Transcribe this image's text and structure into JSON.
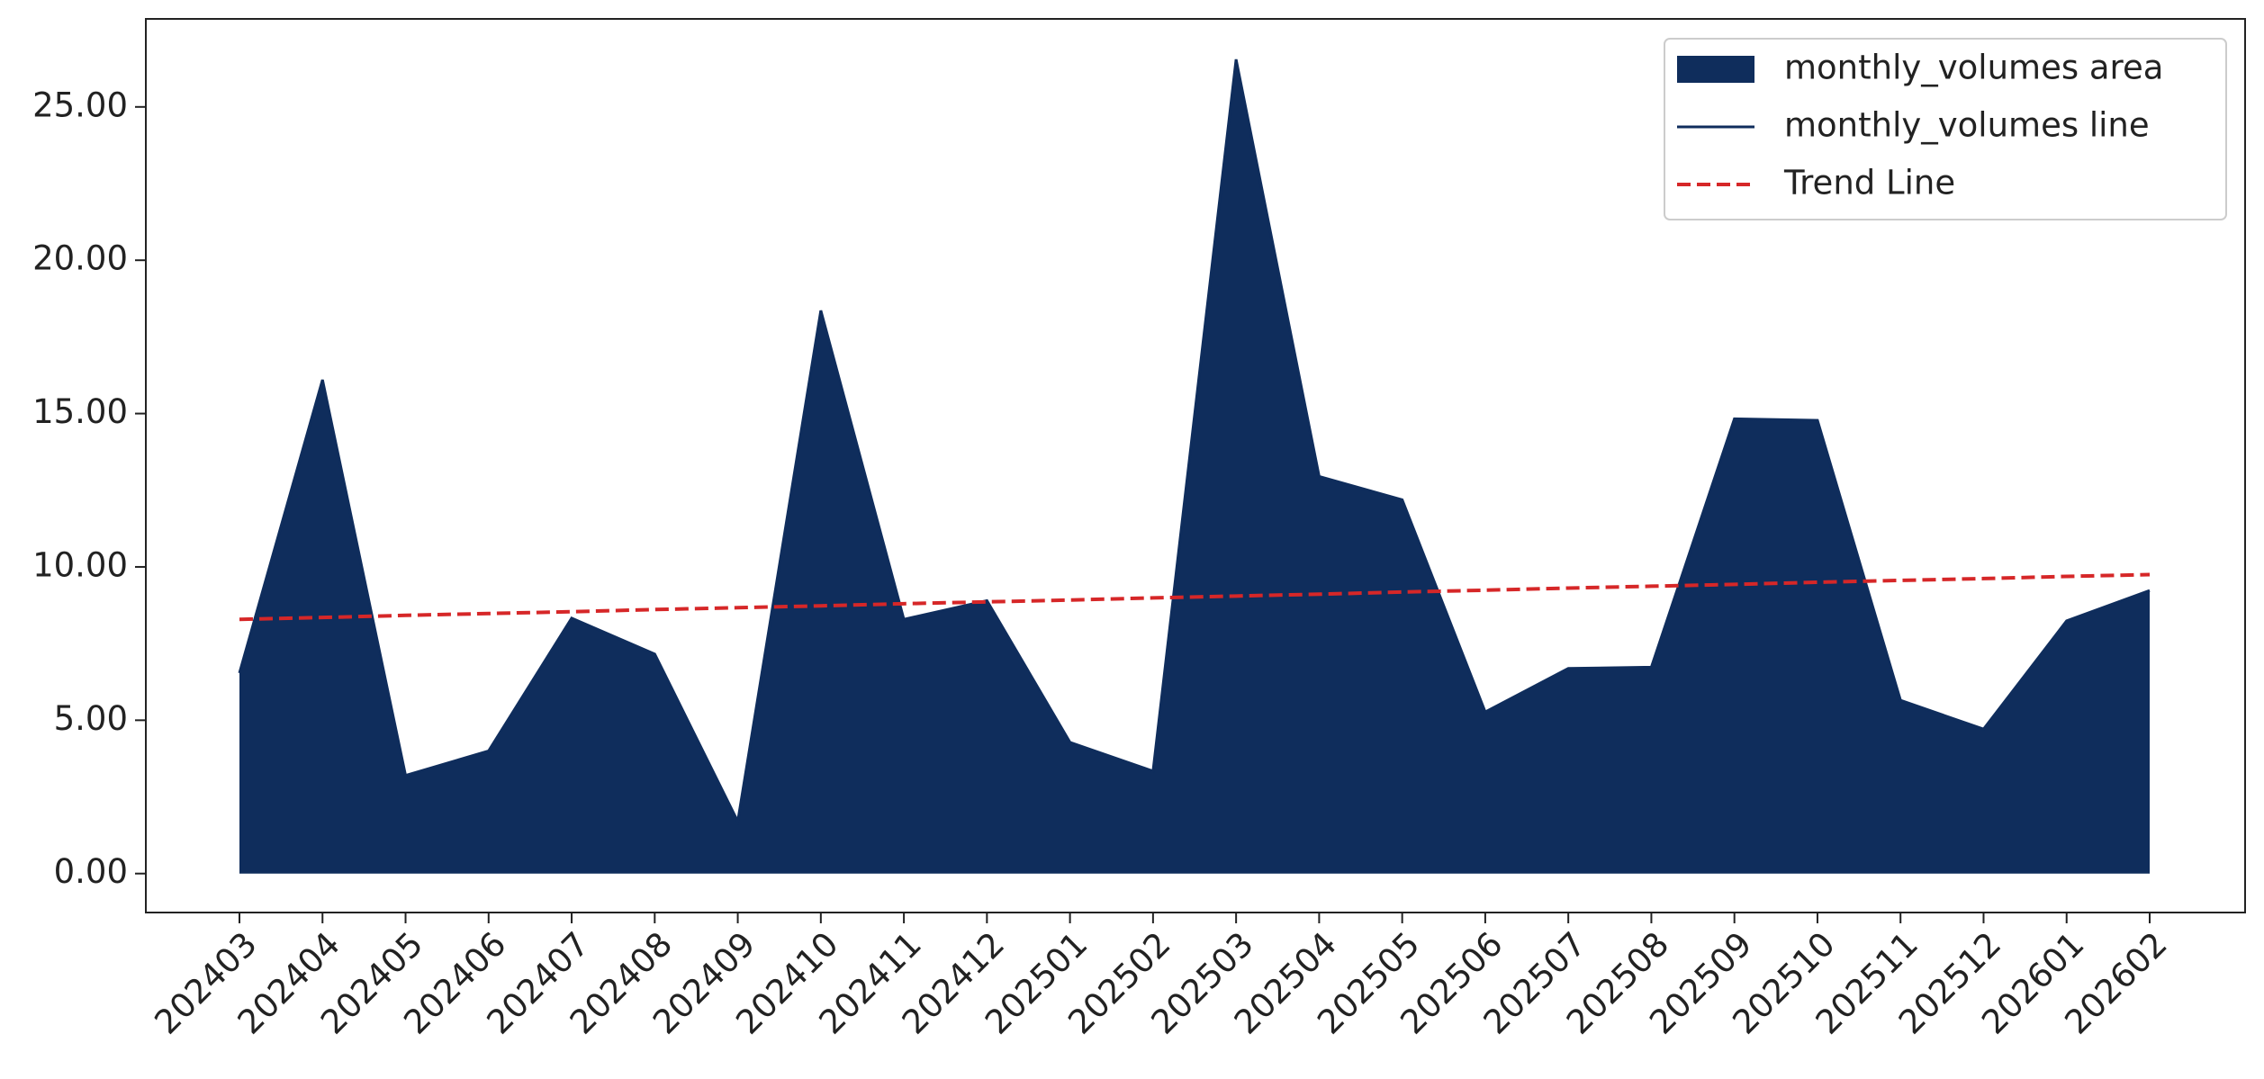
{
  "chart_data": {
    "type": "area",
    "categories": [
      "202403",
      "202404",
      "202405",
      "202406",
      "202407",
      "202408",
      "202409",
      "202410",
      "202411",
      "202412",
      "202501",
      "202502",
      "202503",
      "202504",
      "202505",
      "202506",
      "202507",
      "202508",
      "202509",
      "202510",
      "202511",
      "202512",
      "202601",
      "202602"
    ],
    "series": [
      {
        "name": "monthly_volumes area",
        "color": "#0f2d5c",
        "fill": true,
        "values": [
          6.54,
          16.1,
          3.2,
          4.0,
          8.33,
          7.16,
          1.7,
          18.36,
          8.29,
          8.9,
          4.28,
          3.34,
          26.55,
          12.95,
          12.19,
          5.27,
          6.69,
          6.73,
          14.83,
          14.78,
          5.65,
          4.71,
          8.24,
          9.23
        ]
      },
      {
        "name": "monthly_volumes line",
        "color": "#0f2d5c",
        "values": [
          6.54,
          16.1,
          3.2,
          4.0,
          8.33,
          7.16,
          1.7,
          18.36,
          8.29,
          8.9,
          4.28,
          3.34,
          26.55,
          12.95,
          12.19,
          5.27,
          6.69,
          6.73,
          14.83,
          14.78,
          5.65,
          4.71,
          8.24,
          9.23
        ]
      },
      {
        "name": "Trend Line",
        "color": "#d62728",
        "dashed": true,
        "values": [
          8.29,
          8.35,
          8.42,
          8.48,
          8.54,
          8.61,
          8.67,
          8.73,
          8.8,
          8.86,
          8.92,
          8.99,
          9.05,
          9.11,
          9.18,
          9.24,
          9.31,
          9.37,
          9.43,
          9.5,
          9.56,
          9.62,
          9.69,
          9.75
        ]
      }
    ],
    "ylim": [
      -1.27,
      27.87
    ],
    "yticks": [
      {
        "value": 0,
        "label": "0.00"
      },
      {
        "value": 5,
        "label": "5.00"
      },
      {
        "value": 10,
        "label": "10.00"
      },
      {
        "value": 15,
        "label": "15.00"
      },
      {
        "value": 20,
        "label": "20.00"
      },
      {
        "value": 25,
        "label": "25.00"
      }
    ],
    "legend": "upper right",
    "grid": false
  }
}
